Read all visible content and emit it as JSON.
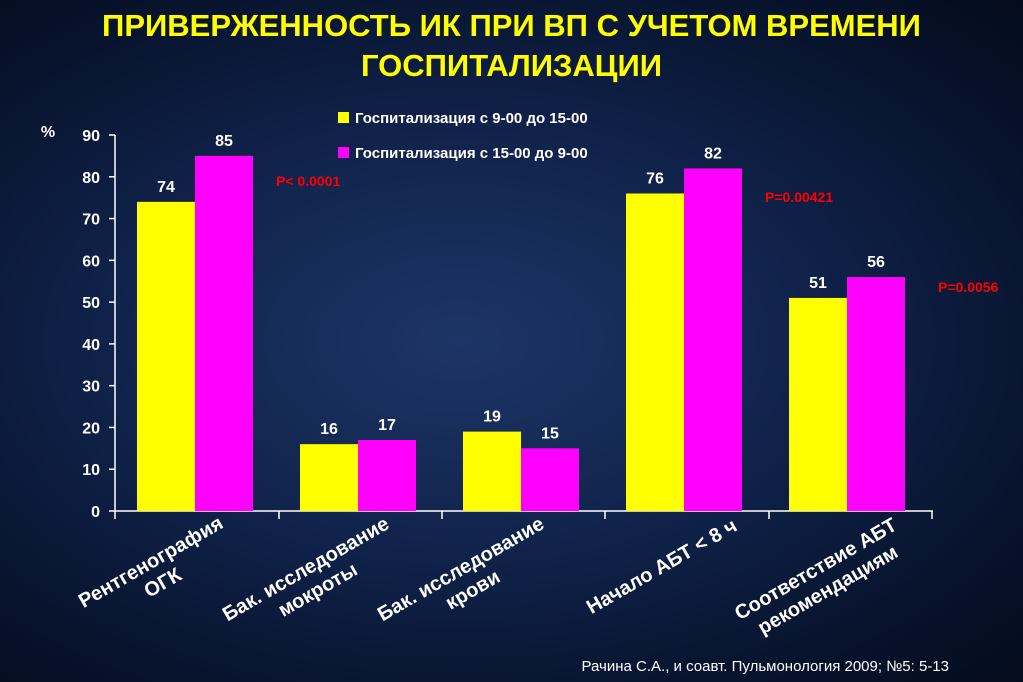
{
  "title": "ПРИВЕРЖЕННОСТЬ ИК ПРИ ВП С УЧЕТОМ ВРЕМЕНИ ГОСПИТАЛИЗАЦИИ",
  "citation": "Рачина С.А., и соавт. Пульмонология 2009; №5: 5-13",
  "colors": {
    "series1": "#ffff00",
    "series2": "#ff00ff",
    "pvalue": "#ff0000",
    "text": "#ffffff",
    "title": "#ffff00"
  },
  "chart_data": {
    "type": "bar",
    "ylabel": "%",
    "ylim": [
      0,
      90
    ],
    "yticks": [
      0,
      10,
      20,
      30,
      40,
      50,
      60,
      70,
      80,
      90
    ],
    "grid": false,
    "legend_position": "top",
    "categories": [
      [
        "Рентгенография",
        "ОГК"
      ],
      [
        "Бак. исследование",
        "мокроты"
      ],
      [
        "Бак. исследование",
        "крови"
      ],
      [
        "Начало АБТ < 8 ч"
      ],
      [
        "Соответствие АБТ",
        "рекомендациям"
      ]
    ],
    "series": [
      {
        "name": "Госпитализация с 9-00 до 15-00",
        "values": [
          74,
          16,
          19,
          76,
          51
        ]
      },
      {
        "name": "Госпитализация с 15-00 до 9-00",
        "values": [
          85,
          17,
          15,
          82,
          56
        ]
      }
    ],
    "annotations": [
      "P< 0.0001",
      "P=0.00421",
      "P=0.0056"
    ]
  }
}
